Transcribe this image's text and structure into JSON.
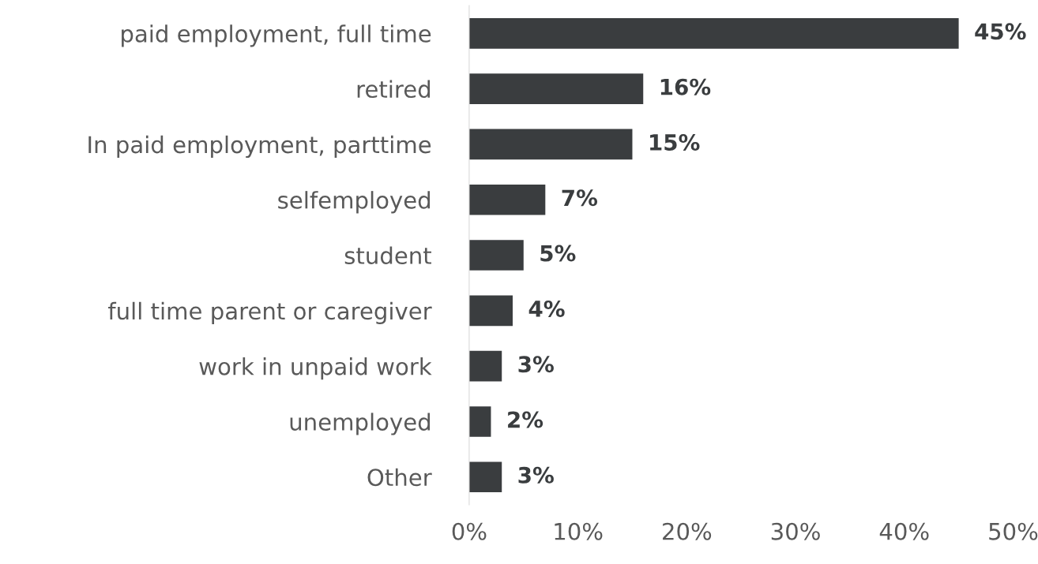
{
  "chart_data": {
    "type": "bar",
    "orientation": "horizontal",
    "categories": [
      "paid employment, full time",
      "retired",
      "In paid employment, parttime",
      "selfemployed",
      "student",
      "full time parent or caregiver",
      "work in unpaid work",
      "unemployed",
      "Other"
    ],
    "values": [
      45,
      16,
      15,
      7,
      5,
      4,
      3,
      2,
      3
    ],
    "value_labels": [
      "45%",
      "16%",
      "15%",
      "7%",
      "5%",
      "4%",
      "3%",
      "2%",
      "3%"
    ],
    "color": "#3a3d3f",
    "xlim": [
      0,
      50
    ],
    "xticks": [
      {
        "value": 0,
        "label": "0%"
      },
      {
        "value": 10,
        "label": "10%"
      },
      {
        "value": 20,
        "label": "20%"
      },
      {
        "value": 30,
        "label": "30%"
      },
      {
        "value": 40,
        "label": "40%"
      },
      {
        "value": 50,
        "label": "50%"
      }
    ],
    "grid": false
  }
}
